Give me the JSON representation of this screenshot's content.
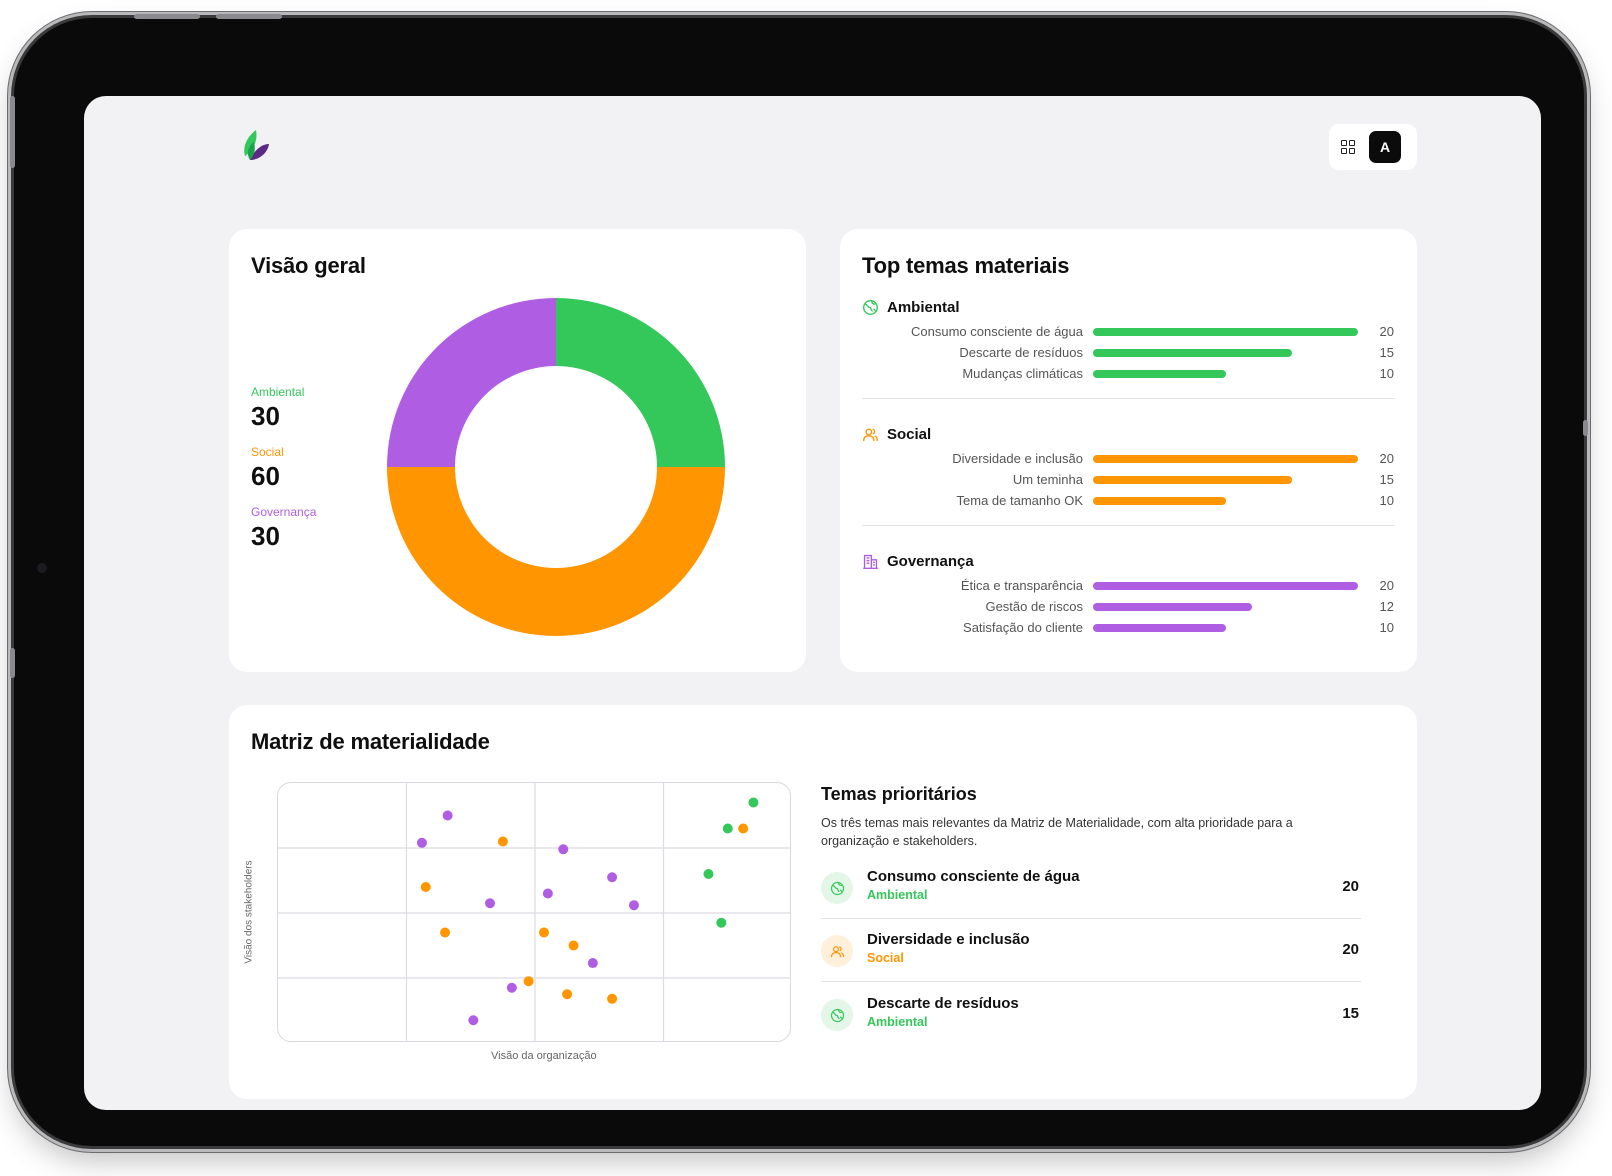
{
  "colors": {
    "ambiental": "#34c759",
    "social": "#ff9500",
    "governanca": "#af5ee4"
  },
  "header": {
    "logo": "leaf-logo",
    "grid_icon": "grid-icon",
    "avatar_initial": "A"
  },
  "overview": {
    "title": "Visão geral",
    "items": [
      {
        "label": "Ambiental",
        "value": "30"
      },
      {
        "label": "Social",
        "value": "60"
      },
      {
        "label": "Governança",
        "value": "30"
      }
    ]
  },
  "chart_data": [
    {
      "type": "pie",
      "title": "Visão geral",
      "categories": [
        "Ambiental",
        "Social",
        "Governança"
      ],
      "values": [
        30,
        60,
        30
      ],
      "colors": [
        "#34c759",
        "#ff9500",
        "#af5ee4"
      ]
    },
    {
      "type": "scatter",
      "title": "Matriz de materialidade",
      "xlabel": "Visão da organização",
      "ylabel": "Visão dos stakeholders",
      "xlim": [
        0,
        4
      ],
      "ylim": [
        0,
        4
      ],
      "grid": true,
      "series": [
        {
          "name": "Ambiental",
          "color": "#34c759",
          "points": [
            [
              3.7,
              3.7
            ],
            [
              3.5,
              3.3
            ],
            [
              3.35,
              2.6
            ],
            [
              3.45,
              1.85
            ]
          ]
        },
        {
          "name": "Social",
          "color": "#ff9500",
          "points": [
            [
              3.62,
              3.3
            ],
            [
              1.75,
              3.1
            ],
            [
              1.15,
              2.4
            ],
            [
              1.3,
              1.7
            ],
            [
              2.07,
              1.7
            ],
            [
              2.3,
              1.5
            ],
            [
              1.95,
              0.95
            ],
            [
              2.25,
              0.75
            ],
            [
              2.6,
              0.68
            ]
          ]
        },
        {
          "name": "Governança",
          "color": "#af5ee4",
          "points": [
            [
              1.32,
              3.5
            ],
            [
              1.12,
              3.08
            ],
            [
              2.22,
              2.98
            ],
            [
              2.6,
              2.55
            ],
            [
              2.1,
              2.3
            ],
            [
              1.65,
              2.15
            ],
            [
              2.77,
              2.12
            ],
            [
              2.45,
              1.23
            ],
            [
              1.82,
              0.85
            ],
            [
              1.52,
              0.35
            ]
          ]
        }
      ]
    }
  ],
  "top_temas": {
    "title": "Top temas materiais",
    "categories": [
      {
        "name": "Ambiental",
        "icon": "globe-icon",
        "color": "#34c759",
        "items": [
          {
            "label": "Consumo consciente de água",
            "value": 20
          },
          {
            "label": "Descarte de resíduos",
            "value": 15
          },
          {
            "label": "Mudanças climáticas",
            "value": 10
          }
        ]
      },
      {
        "name": "Social",
        "icon": "users-icon",
        "color": "#ff9500",
        "items": [
          {
            "label": "Diversidade e inclusão",
            "value": 20
          },
          {
            "label": "Um teminha",
            "value": 15
          },
          {
            "label": "Tema de tamanho OK",
            "value": 10
          }
        ]
      },
      {
        "name": "Governança",
        "icon": "building-icon",
        "color": "#af5ee4",
        "items": [
          {
            "label": "Ética e transparência",
            "value": 20
          },
          {
            "label": "Gestão de riscos",
            "value": 12
          },
          {
            "label": "Satisfação do cliente",
            "value": 10
          }
        ]
      }
    ]
  },
  "matrix": {
    "title": "Matriz de materialidade",
    "xlabel": "Visão da organização",
    "ylabel": "Visão dos stakeholders",
    "priority": {
      "title": "Temas prioritários",
      "description": "Os três temas mais relevantes da Matriz de Materialidade, com alta prioridade para a organização e stakeholders.",
      "items": [
        {
          "name": "Consumo consciente de água",
          "category": "Ambiental",
          "value": "20",
          "icon": "globe-icon",
          "color": "#34c759",
          "bg": "#e4f6e8"
        },
        {
          "name": "Diversidade e inclusão",
          "category": "Social",
          "value": "20",
          "icon": "users-icon",
          "color": "#ff9500",
          "bg": "#fff0dc"
        },
        {
          "name": "Descarte de resíduos",
          "category": "Ambiental",
          "value": "15",
          "icon": "globe-icon",
          "color": "#34c759",
          "bg": "#e4f6e8"
        }
      ]
    }
  }
}
